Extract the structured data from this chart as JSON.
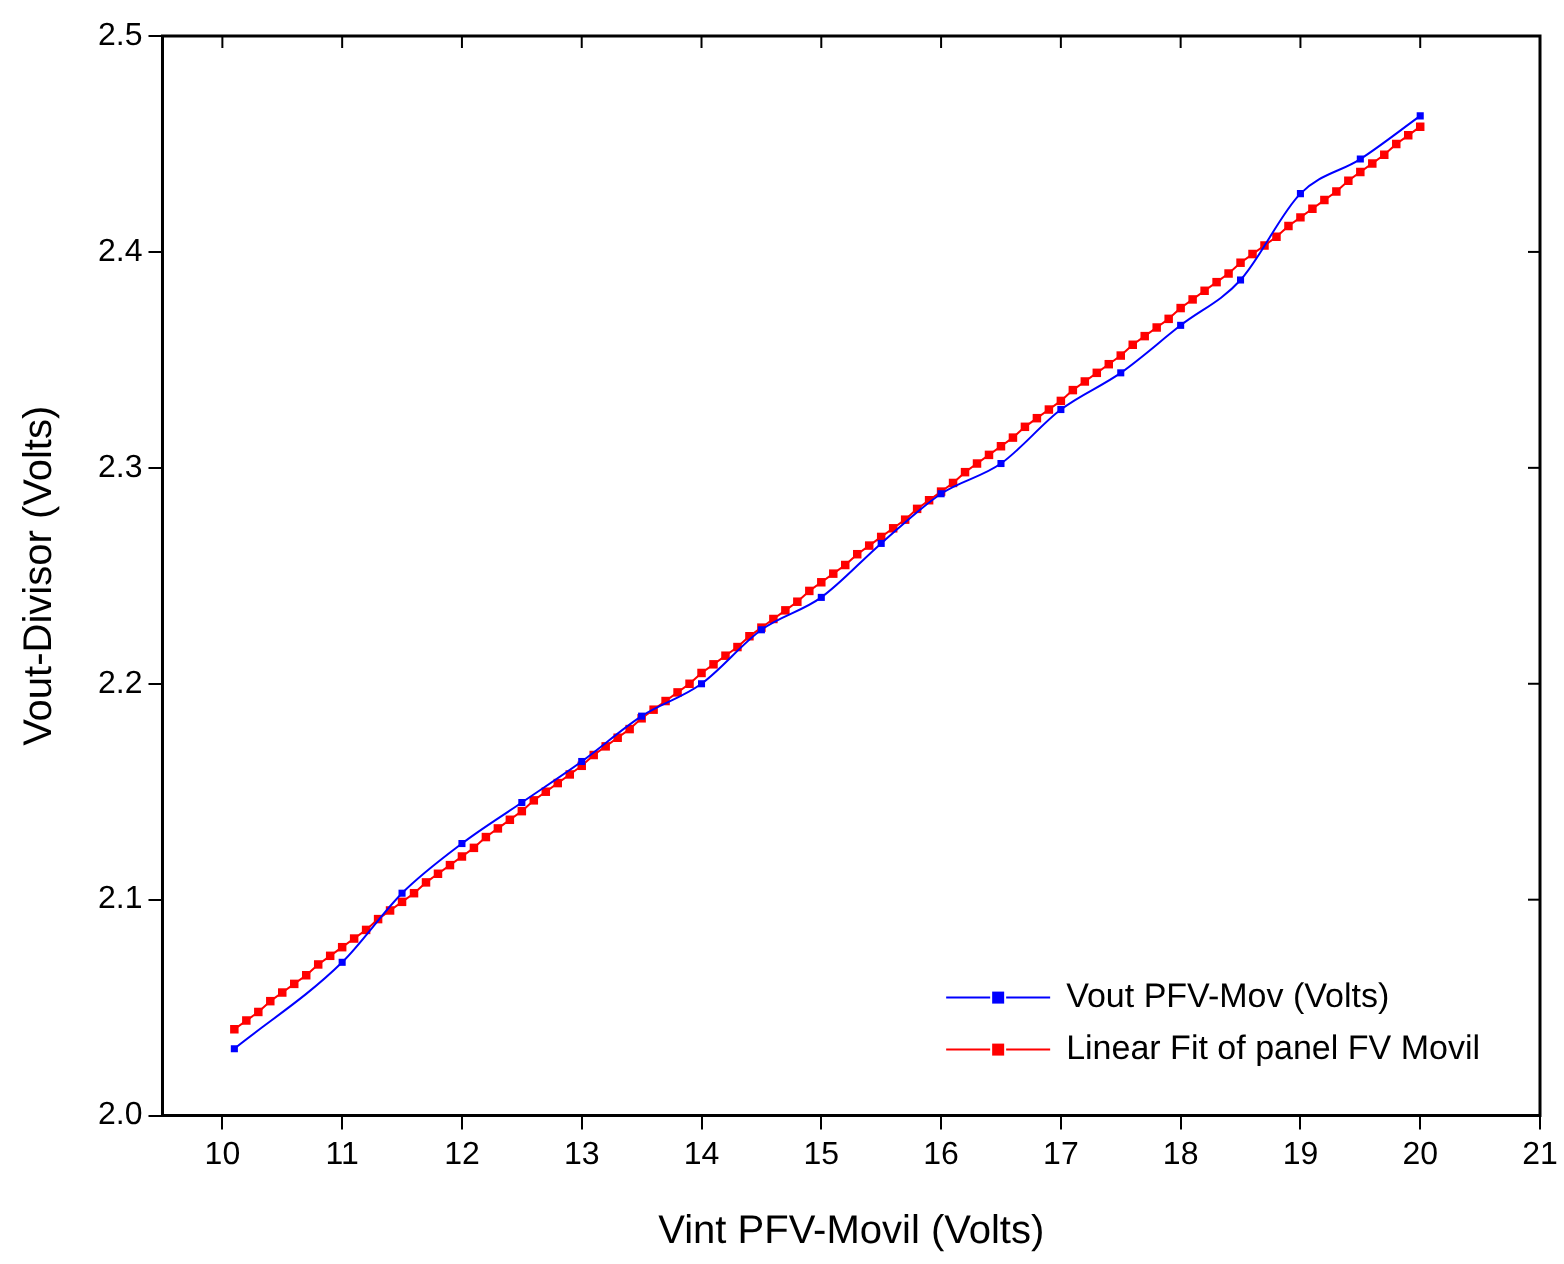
{
  "chart_data": {
    "type": "line",
    "xlabel": "Vint PFV-Movil (Volts)",
    "ylabel": "Vout-Divisor (Volts)",
    "xlim": [
      9.5,
      21
    ],
    "xticks": [
      10,
      11,
      12,
      13,
      14,
      15,
      16,
      17,
      18,
      19,
      20,
      21
    ],
    "ylim": [
      2.0,
      2.5
    ],
    "yticks": [
      {
        "value": 2.0,
        "label": "2.0"
      },
      2.1,
      2.2,
      2.3,
      2.4,
      {
        "value": 2.5,
        "label": "2.5"
      }
    ],
    "grid": false,
    "legend": "bottom right",
    "marker": "square",
    "line_style": "solid",
    "series": [
      {
        "name": "Vout PFV-Mov (Volts)",
        "color": "#0000ff",
        "x": [
          10.1,
          11,
          11.5,
          12,
          12.5,
          13,
          13.5,
          14,
          14.5,
          15,
          15.5,
          16,
          16.5,
          17,
          17.5,
          18,
          18.5,
          19,
          19.5,
          20
        ],
        "values": [
          2.031,
          2.071,
          2.103,
          2.126,
          2.145,
          2.164,
          2.185,
          2.2,
          2.225,
          2.24,
          2.265,
          2.288,
          2.302,
          2.327,
          2.344,
          2.366,
          2.387,
          2.427,
          2.443,
          2.463
        ]
      },
      {
        "name": "Linear Fit of panel FV Movil",
        "color": "#ff0000",
        "x": [
          10.1,
          10.2,
          10.3,
          10.4,
          10.5,
          10.6,
          10.7,
          10.8,
          10.9,
          11.0,
          11.1,
          11.2,
          11.3,
          11.4,
          11.5,
          11.6,
          11.7,
          11.8,
          11.9,
          12.0,
          12.1,
          12.2,
          12.3,
          12.4,
          12.5,
          12.6,
          12.7,
          12.8,
          12.9,
          13.0,
          13.1,
          13.2,
          13.3,
          13.4,
          13.5,
          13.6,
          13.7,
          13.8,
          13.9,
          14.0,
          14.1,
          14.2,
          14.3,
          14.4,
          14.5,
          14.6,
          14.7,
          14.8,
          14.9,
          15.0,
          15.1,
          15.2,
          15.3,
          15.4,
          15.5,
          15.6,
          15.7,
          15.8,
          15.9,
          16.0,
          16.1,
          16.2,
          16.3,
          16.4,
          16.5,
          16.6,
          16.7,
          16.8,
          16.9,
          17.0,
          17.1,
          17.2,
          17.3,
          17.4,
          17.5,
          17.6,
          17.7,
          17.8,
          17.9,
          18.0,
          18.1,
          18.2,
          18.3,
          18.4,
          18.5,
          18.6,
          18.7,
          18.8,
          18.9,
          19.0,
          19.1,
          19.2,
          19.3,
          19.4,
          19.5,
          19.6,
          19.7,
          19.8,
          19.9,
          20.0
        ],
        "values": [
          2.04,
          2.044,
          2.048,
          2.053,
          2.057,
          2.061,
          2.065,
          2.07,
          2.074,
          2.078,
          2.082,
          2.086,
          2.091,
          2.095,
          2.099,
          2.103,
          2.108,
          2.112,
          2.116,
          2.12,
          2.124,
          2.129,
          2.133,
          2.137,
          2.141,
          2.146,
          2.15,
          2.154,
          2.158,
          2.162,
          2.167,
          2.171,
          2.175,
          2.179,
          2.184,
          2.188,
          2.192,
          2.196,
          2.2,
          2.205,
          2.209,
          2.213,
          2.217,
          2.222,
          2.226,
          2.23,
          2.234,
          2.238,
          2.243,
          2.247,
          2.251,
          2.255,
          2.26,
          2.264,
          2.268,
          2.272,
          2.276,
          2.281,
          2.285,
          2.289,
          2.293,
          2.298,
          2.302,
          2.306,
          2.31,
          2.314,
          2.319,
          2.323,
          2.327,
          2.331,
          2.336,
          2.34,
          2.344,
          2.348,
          2.352,
          2.357,
          2.361,
          2.365,
          2.369,
          2.374,
          2.378,
          2.382,
          2.386,
          2.39,
          2.395,
          2.399,
          2.403,
          2.407,
          2.412,
          2.416,
          2.42,
          2.424,
          2.428,
          2.433,
          2.437,
          2.441,
          2.445,
          2.45,
          2.454,
          2.458
        ]
      }
    ]
  }
}
